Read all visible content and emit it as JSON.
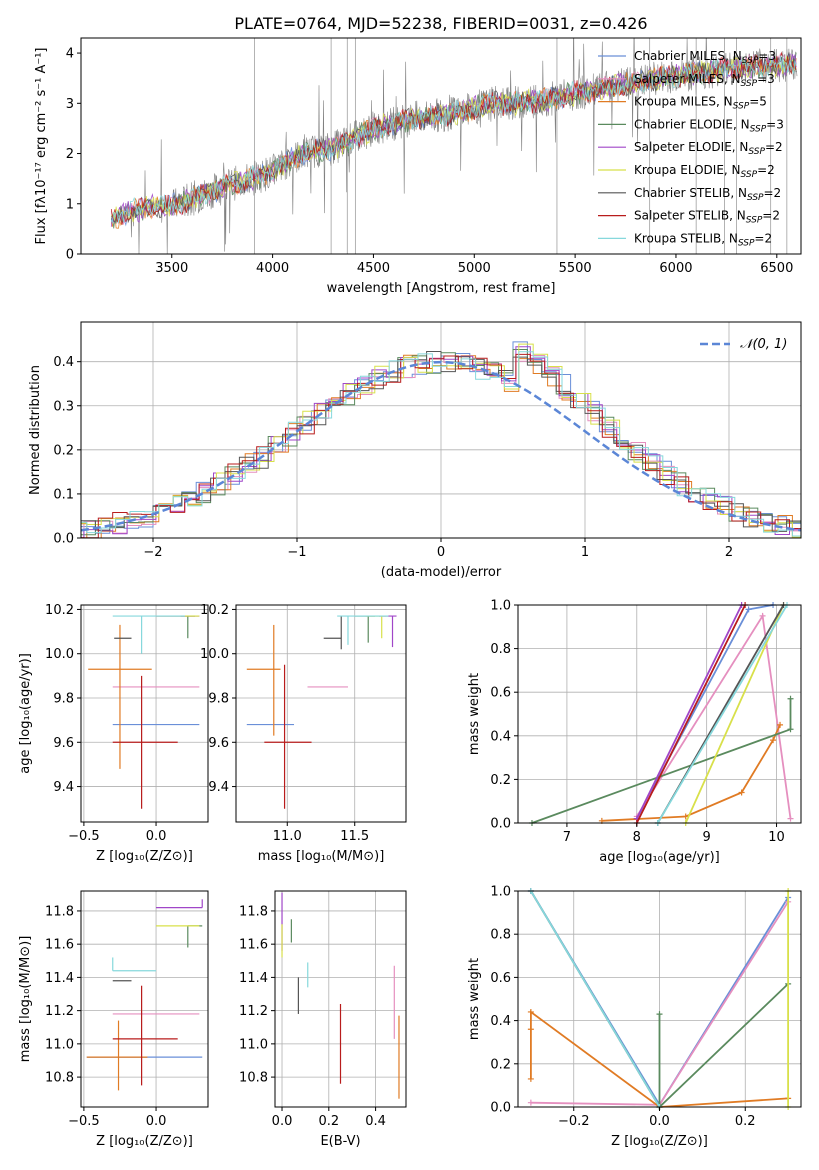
{
  "figure": {
    "title": "PLATE=0764, MJD=52238, FIBERID=0031, z=0.426"
  },
  "legend_series": [
    {
      "label": "Chabrier MILES, N",
      "sub": "SSP",
      "tail": "=3",
      "color": "#6a8fd8"
    },
    {
      "label": "Salpeter MILES, N",
      "sub": "SSP",
      "tail": "=3",
      "color": "#e58fbf"
    },
    {
      "label": "Kroupa MILES, N",
      "sub": "SSP",
      "tail": "=5",
      "color": "#e07b24"
    },
    {
      "label": "Chabrier ELODIE, N",
      "sub": "SSP",
      "tail": "=3",
      "color": "#5a8a5e"
    },
    {
      "label": "Salpeter ELODIE, N",
      "sub": "SSP",
      "tail": "=2",
      "color": "#a046c8"
    },
    {
      "label": "Kroupa ELODIE, N",
      "sub": "SSP",
      "tail": "=2",
      "color": "#d8e04a"
    },
    {
      "label": "Chabrier STELIB, N",
      "sub": "SSP",
      "tail": "=2",
      "color": "#555555"
    },
    {
      "label": "Salpeter STELIB, N",
      "sub": "SSP",
      "tail": "=2",
      "color": "#b81c1c"
    },
    {
      "label": "Kroupa STELIB, N",
      "sub": "SSP",
      "tail": "=2",
      "color": "#86d8dc"
    }
  ],
  "chart_data": [
    {
      "id": "spectrum",
      "type": "line",
      "xlabel": "wavelength [Angstrom, rest frame]",
      "ylabel": "Flux [fλ10⁻¹⁷ erg cm⁻² s⁻¹ A⁻¹]",
      "xlim": [
        3050,
        6620
      ],
      "ylim": [
        0,
        4.3
      ],
      "xticks": [
        3500,
        4000,
        4500,
        5000,
        5500,
        6000,
        6500
      ],
      "yticks": [
        0,
        1,
        2,
        3,
        4
      ],
      "x": [
        3200,
        3300,
        3400,
        3500,
        3600,
        3700,
        3800,
        3900,
        4000,
        4100,
        4200,
        4300,
        4400,
        4500,
        4600,
        4700,
        4800,
        4900,
        5000,
        5100,
        5200,
        5300,
        5400,
        5500,
        5600,
        5700,
        5800,
        5900,
        6000,
        6100,
        6200,
        6300,
        6400,
        6500,
        6600
      ],
      "model_values": [
        0.7,
        0.85,
        0.95,
        0.95,
        1.1,
        1.25,
        1.4,
        1.5,
        1.65,
        1.9,
        2.05,
        2.1,
        2.3,
        2.5,
        2.6,
        2.7,
        2.75,
        2.8,
        2.9,
        3.0,
        3.0,
        3.05,
        3.1,
        3.2,
        3.25,
        3.35,
        3.4,
        3.5,
        3.55,
        3.6,
        3.65,
        3.7,
        3.75,
        3.75,
        3.8
      ]
    },
    {
      "id": "residuals",
      "type": "line",
      "xlabel": "(data-model)/error",
      "ylabel": "Normed distribution",
      "xlim": [
        -2.5,
        2.5
      ],
      "ylim": [
        0,
        0.49
      ],
      "xticks": [
        -2,
        -1,
        0,
        1,
        2
      ],
      "yticks": [
        0.0,
        0.1,
        0.2,
        0.3,
        0.4
      ],
      "legend": "𝒩(0, 1)"
    },
    {
      "id": "age-vs-Z",
      "type": "scatter",
      "xlabel": "Z [log₁₀(Z/Z⊙)]",
      "ylabel": "age  [log₁₀(age/yr)]",
      "xlim": [
        -0.52,
        0.36
      ],
      "ylim": [
        9.24,
        10.22
      ],
      "xticks": [
        -0.5,
        0.0,
        0.5
      ],
      "yticks": [
        9.4,
        9.6,
        9.8,
        10.0,
        10.2
      ],
      "points": [
        {
          "x": 0.0,
          "y": 9.68,
          "xerr": [
            0.3,
            0.3
          ],
          "yerr": [
            0.0,
            0.0
          ],
          "color": "#6a8fd8"
        },
        {
          "x": 0.0,
          "y": 9.85,
          "xerr": [
            0.3,
            0.3
          ],
          "yerr": [
            0.0,
            0.0
          ],
          "color": "#e58fbf"
        },
        {
          "x": -0.25,
          "y": 9.93,
          "xerr": [
            0.22,
            0.22
          ],
          "yerr": [
            0.45,
            0.2
          ],
          "color": "#e07b24"
        },
        {
          "x": 0.22,
          "y": 10.17,
          "xerr": [
            0.05,
            0.05
          ],
          "yerr": [
            0.1,
            0.0
          ],
          "color": "#5a8a5e"
        },
        {
          "x": 0.3,
          "y": 10.17,
          "xerr": [
            0.3,
            0.0
          ],
          "yerr": [
            0.0,
            0.0
          ],
          "color": "#a046c8"
        },
        {
          "x": 0.3,
          "y": 10.17,
          "xerr": [
            0.3,
            0.0
          ],
          "yerr": [
            0.0,
            0.0
          ],
          "color": "#d8e04a"
        },
        {
          "x": -0.17,
          "y": 10.07,
          "xerr": [
            0.12,
            0.0
          ],
          "yerr": [
            0.0,
            0.0
          ],
          "color": "#555555"
        },
        {
          "x": -0.1,
          "y": 9.6,
          "xerr": [
            0.2,
            0.25
          ],
          "yerr": [
            0.3,
            0.3
          ],
          "color": "#b81c1c"
        },
        {
          "x": -0.1,
          "y": 10.17,
          "xerr": [
            0.2,
            0.3
          ],
          "yerr": [
            0.17,
            0.0
          ],
          "color": "#86d8dc"
        }
      ]
    },
    {
      "id": "age-vs-mass",
      "type": "scatter",
      "xlabel": "mass [log₁₀(M/M⊙)]",
      "ylabel": "",
      "xlim": [
        10.62,
        11.88
      ],
      "ylim": [
        9.24,
        10.22
      ],
      "xticks": [
        11.0,
        11.5
      ],
      "yticks": [
        9.4,
        9.6,
        9.8,
        10.0,
        10.2
      ],
      "points": [
        {
          "x": 10.9,
          "y": 9.68,
          "xerr": [
            0.2,
            0.15
          ],
          "yerr": [
            0.0,
            0.0
          ],
          "color": "#6a8fd8"
        },
        {
          "x": 11.3,
          "y": 9.85,
          "xerr": [
            0.15,
            0.15
          ],
          "yerr": [
            0.0,
            0.0
          ],
          "color": "#e58fbf"
        },
        {
          "x": 10.9,
          "y": 9.93,
          "xerr": [
            0.2,
            0.05
          ],
          "yerr": [
            0.3,
            0.2
          ],
          "color": "#e07b24"
        },
        {
          "x": 11.6,
          "y": 10.17,
          "xerr": [
            0.1,
            0.05
          ],
          "yerr": [
            0.12,
            0.0
          ],
          "color": "#5a8a5e"
        },
        {
          "x": 11.78,
          "y": 10.17,
          "xerr": [
            0.1,
            0.03
          ],
          "yerr": [
            0.14,
            0.0
          ],
          "color": "#a046c8"
        },
        {
          "x": 11.7,
          "y": 10.17,
          "xerr": [
            0.12,
            0.03
          ],
          "yerr": [
            0.1,
            0.0
          ],
          "color": "#d8e04a"
        },
        {
          "x": 11.4,
          "y": 10.07,
          "xerr": [
            0.13,
            0.0
          ],
          "yerr": [
            0.05,
            0.1
          ],
          "color": "#555555"
        },
        {
          "x": 10.98,
          "y": 9.6,
          "xerr": [
            0.15,
            0.2
          ],
          "yerr": [
            0.3,
            0.35
          ],
          "color": "#b81c1c"
        },
        {
          "x": 11.45,
          "y": 10.17,
          "xerr": [
            0.08,
            0.3
          ],
          "yerr": [
            0.13,
            0.0
          ],
          "color": "#86d8dc"
        }
      ]
    },
    {
      "id": "massweight-vs-age",
      "type": "line",
      "xlabel": "age  [log₁₀(age/yr)]",
      "ylabel": "mass weight",
      "xlim": [
        6.3,
        10.35
      ],
      "ylim": [
        0.0,
        1.0
      ],
      "xticks": [
        7,
        8,
        9,
        10
      ],
      "yticks": [
        0.0,
        0.2,
        0.4,
        0.6,
        0.8,
        1.0
      ],
      "series": [
        {
          "color": "#6a8fd8",
          "x": [
            8.0,
            9.6,
            9.95
          ],
          "y": [
            0.02,
            0.98,
            1.0
          ]
        },
        {
          "color": "#e58fbf",
          "x": [
            8.0,
            9.8,
            10.2
          ],
          "y": [
            0.03,
            0.95,
            0.02
          ]
        },
        {
          "color": "#e07b24",
          "x": [
            7.5,
            8.7,
            9.5,
            9.95,
            10.05
          ],
          "y": [
            0.01,
            0.03,
            0.14,
            0.38,
            0.45
          ]
        },
        {
          "color": "#5a8a5e",
          "x": [
            6.5,
            10.2,
            10.2
          ],
          "y": [
            0.0,
            0.43,
            0.57
          ]
        },
        {
          "color": "#a046c8",
          "x": [
            8.0,
            9.5
          ],
          "y": [
            0.02,
            1.0
          ]
        },
        {
          "color": "#d8e04a",
          "x": [
            8.7,
            10.1
          ],
          "y": [
            0.0,
            1.0
          ]
        },
        {
          "color": "#555555",
          "x": [
            8.3,
            10.1
          ],
          "y": [
            0.0,
            1.0
          ]
        },
        {
          "color": "#b81c1c",
          "x": [
            8.0,
            9.55
          ],
          "y": [
            0.0,
            1.0
          ]
        },
        {
          "color": "#86d8dc",
          "x": [
            8.3,
            10.15
          ],
          "y": [
            0.0,
            1.0
          ]
        }
      ]
    },
    {
      "id": "mass-vs-Z",
      "type": "scatter",
      "xlabel": "Z [log₁₀(Z/Z⊙)]",
      "ylabel": "mass [log₁₀(M/M⊙)]",
      "xlim": [
        -0.52,
        0.36
      ],
      "ylim": [
        10.62,
        11.92
      ],
      "xticks": [
        -0.5,
        0.0,
        0.5
      ],
      "yticks": [
        10.8,
        11.0,
        11.2,
        11.4,
        11.6,
        11.8
      ],
      "points": [
        {
          "x": 0.0,
          "y": 10.92,
          "xerr": [
            0.48,
            0.32
          ],
          "yerr": [
            0.0,
            0.0
          ],
          "color": "#6a8fd8"
        },
        {
          "x": 0.0,
          "y": 11.18,
          "xerr": [
            0.3,
            0.3
          ],
          "yerr": [
            0.0,
            0.0
          ],
          "color": "#e58fbf"
        },
        {
          "x": -0.26,
          "y": 10.92,
          "xerr": [
            0.22,
            0.2
          ],
          "yerr": [
            0.2,
            0.22
          ],
          "color": "#e07b24"
        },
        {
          "x": 0.22,
          "y": 11.71,
          "xerr": [
            0.0,
            0.1
          ],
          "yerr": [
            0.13,
            0.0
          ],
          "color": "#5a8a5e"
        },
        {
          "x": 0.32,
          "y": 11.82,
          "xerr": [
            0.32,
            0.0
          ],
          "yerr": [
            0.0,
            0.05
          ],
          "color": "#a046c8"
        },
        {
          "x": 0.3,
          "y": 11.71,
          "xerr": [
            0.3,
            0.0
          ],
          "yerr": [
            0.0,
            0.0
          ],
          "color": "#d8e04a"
        },
        {
          "x": -0.17,
          "y": 11.38,
          "xerr": [
            0.13,
            0.0
          ],
          "yerr": [
            0.0,
            0.0
          ],
          "color": "#555555"
        },
        {
          "x": -0.1,
          "y": 11.03,
          "xerr": [
            0.2,
            0.25
          ],
          "yerr": [
            0.28,
            0.32
          ],
          "color": "#b81c1c"
        },
        {
          "x": -0.3,
          "y": 11.44,
          "xerr": [
            0.0,
            0.3
          ],
          "yerr": [
            0.0,
            0.08
          ],
          "color": "#86d8dc"
        }
      ]
    },
    {
      "id": "mass-vs-EBV",
      "type": "scatter",
      "xlabel": "E(B-V)",
      "ylabel": "",
      "xlim": [
        -0.03,
        0.53
      ],
      "ylim": [
        10.62,
        11.92
      ],
      "xticks": [
        0.0,
        0.2,
        0.4
      ],
      "yticks": [
        10.8,
        11.0,
        11.2,
        11.4,
        11.6,
        11.8
      ],
      "points": [
        {
          "x": 0.0,
          "y": 11.71,
          "yerr": [
            0.15,
            0.2
          ],
          "color": "#a046c8"
        },
        {
          "x": 0.0,
          "y": 11.6,
          "yerr": [
            0.08,
            0.12
          ],
          "color": "#d8e04a"
        },
        {
          "x": 0.04,
          "y": 11.71,
          "yerr": [
            0.1,
            0.04
          ],
          "color": "#5a8a5e"
        },
        {
          "x": 0.07,
          "y": 11.3,
          "yerr": [
            0.12,
            0.1
          ],
          "color": "#555555"
        },
        {
          "x": 0.11,
          "y": 11.44,
          "yerr": [
            0.1,
            0.05
          ],
          "color": "#86d8dc"
        },
        {
          "x": 0.25,
          "y": 11.0,
          "yerr": [
            0.24,
            0.24
          ],
          "color": "#b81c1c"
        },
        {
          "x": 0.48,
          "y": 11.25,
          "yerr": [
            0.22,
            0.22
          ],
          "color": "#e58fbf"
        },
        {
          "x": 0.5,
          "y": 10.92,
          "yerr": [
            0.25,
            0.25
          ],
          "color": "#e07b24"
        }
      ]
    },
    {
      "id": "massweight-vs-Z",
      "type": "line",
      "xlabel": "Z [log₁₀(Z/Z⊙)]",
      "ylabel": "mass weight",
      "xlim": [
        -0.33,
        0.33
      ],
      "ylim": [
        0.0,
        1.0
      ],
      "xticks": [
        -0.2,
        0.0,
        0.2
      ],
      "yticks": [
        0.0,
        0.2,
        0.4,
        0.6,
        0.8,
        1.0
      ],
      "series": [
        {
          "color": "#6a8fd8",
          "x": [
            -0.3,
            0.0,
            0.3
          ],
          "y": [
            1.0,
            0.01,
            0.97
          ]
        },
        {
          "color": "#e58fbf",
          "x": [
            -0.3,
            0.0,
            0.3
          ],
          "y": [
            0.02,
            0.01,
            0.95
          ]
        },
        {
          "color": "#e07b24",
          "x": [
            -0.3,
            -0.3,
            -0.3,
            0.0,
            0.3
          ],
          "y": [
            0.13,
            0.36,
            0.44,
            0.0,
            0.04
          ]
        },
        {
          "color": "#5a8a5e",
          "x": [
            0.0,
            0.0,
            0.3
          ],
          "y": [
            0.43,
            0.0,
            0.57
          ]
        },
        {
          "color": "#d8e04a",
          "x": [
            0.3,
            0.3
          ],
          "y": [
            0.0,
            1.0
          ]
        },
        {
          "color": "#555555",
          "x": [
            -0.3,
            0.0
          ],
          "y": [
            1.0,
            0.0
          ]
        },
        {
          "color": "#86d8dc",
          "x": [
            -0.3,
            0.0
          ],
          "y": [
            1.0,
            0.0
          ]
        }
      ]
    }
  ]
}
